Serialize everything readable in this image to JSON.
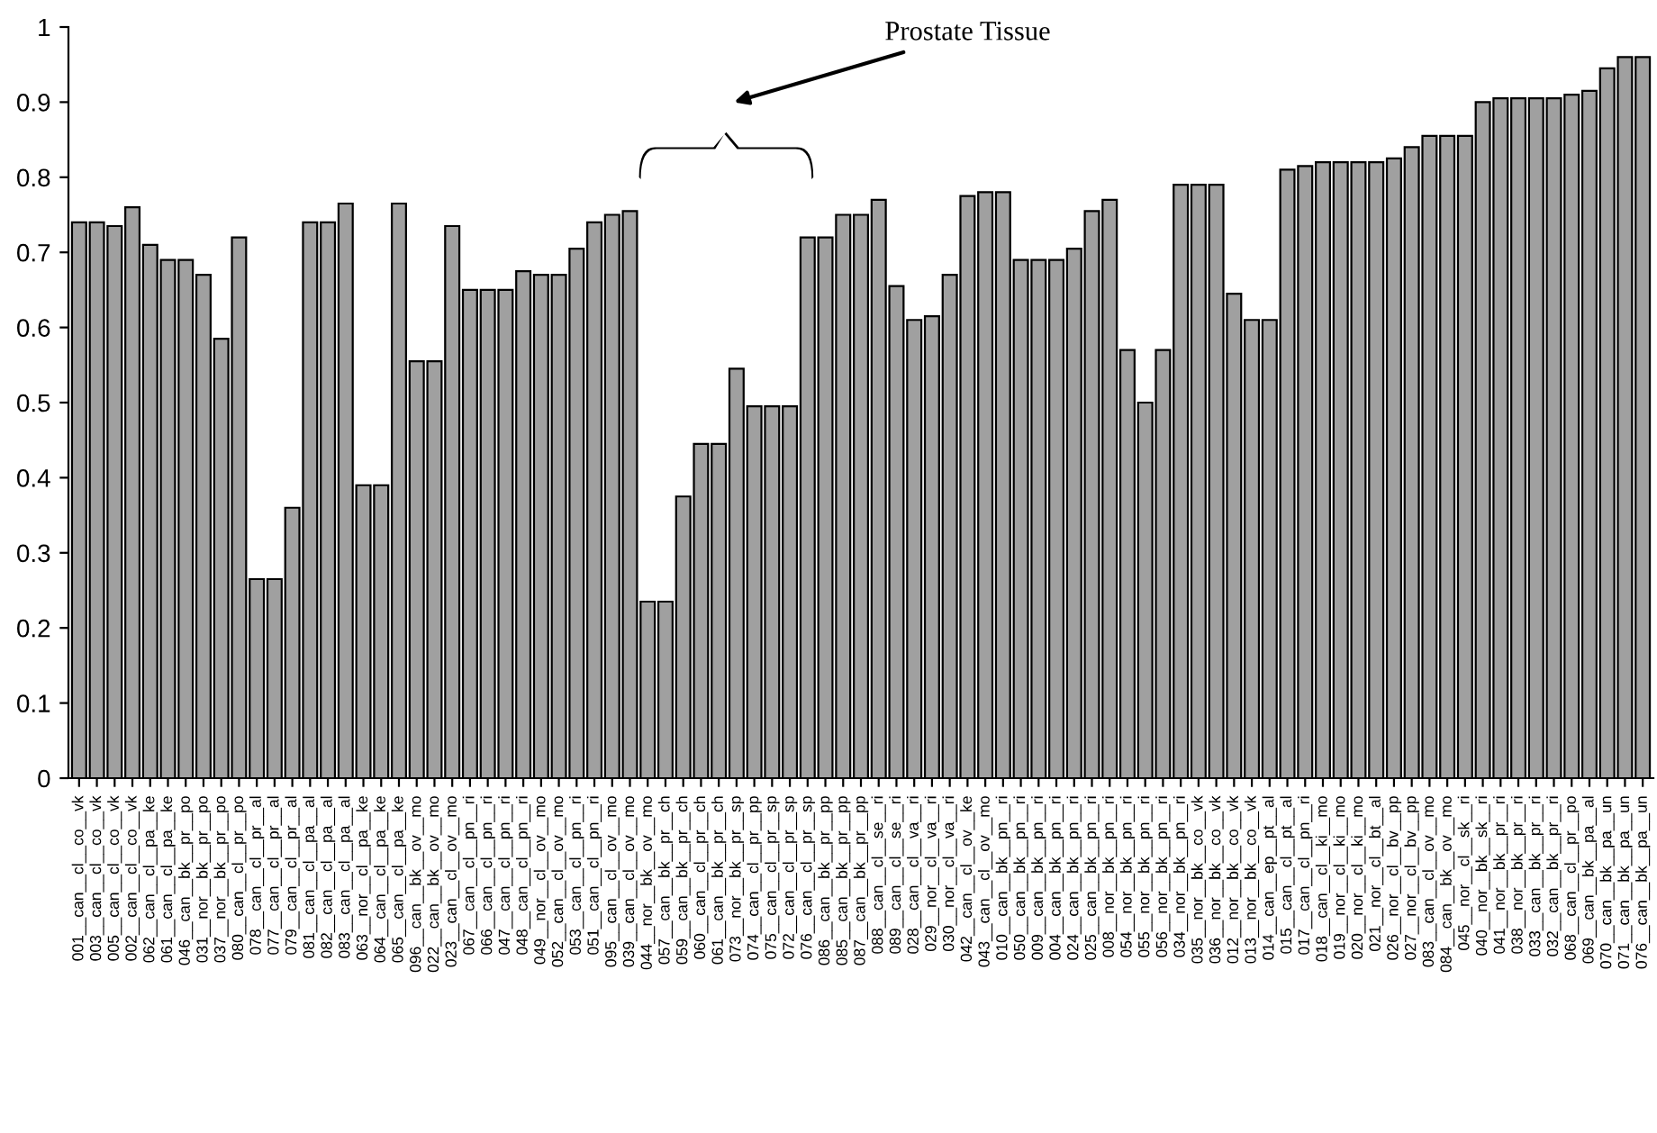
{
  "chart_data": {
    "type": "bar",
    "categories": [
      "001__can__cl__co__vk",
      "003__can__cl__co__vk",
      "005__can__cl__co__vk",
      "002__can__cl__co__vk",
      "062__can__cl__pa__ke",
      "061__can__cl__pa__ke",
      "046__can__bk__pr__po",
      "031__nor__bk__pr__po",
      "037__nor__bk__pr__po",
      "080__can__cl__pr__po",
      "078__can__cl__pr__al",
      "077__can__cl__pr__al",
      "079__can__cl__pr__al",
      "081__can__cl__pa__al",
      "082__can__cl__pa__al",
      "083__can__cl__pa__al",
      "063__nor__cl__pa__ke",
      "064__can__cl__pa__ke",
      "065__can__cl__pa__ke",
      "096__can__bk__ov__mo",
      "022__can__bk__ov__mo",
      "023__can__cl__ov__mo",
      "067__can__cl__pn__ri",
      "066__can__cl__pn__ri",
      "047__can__cl__pn__ri",
      "048__can__cl__pn__ri",
      "049__nor__cl__ov__mo",
      "052__can__cl__ov__mo",
      "053__can__cl__pn__ri",
      "051__can__cl__pn__ri",
      "095__can__cl__ov__mo",
      "039__can__cl__ov__mo",
      "044__nor__bk__ov__mo",
      "057__can__bk__pr__ch",
      "059__can__bk__pr__ch",
      "060__can__cl__pr__ch",
      "061__can__bk__pr__ch",
      "073__nor__bk__pr__sp",
      "074__can__cl__pr__pp",
      "075__can__cl__pr__sp",
      "072__can__cl__pr__sp",
      "076__can__cl__pr__sp",
      "086__can__bk__pr__pp",
      "085__can__bk__pr__pp",
      "087__can__bk__pr__pp",
      "088__can__cl__se__ri",
      "089__can__cl__se__ri",
      "028__can__cl__va__ri",
      "029__nor__cl__va__ri",
      "030__nor__cl__va__ri",
      "042__can__cl__ov__ke",
      "043__can__cl__ov__mo",
      "010__can__bk__pn__ri",
      "050__can__bk__pn__ri",
      "009__can__bk__pn__ri",
      "004__can__bk__pn__ri",
      "024__can__bk__pn__ri",
      "025__can__bk__pn__ri",
      "008__nor__bk__pn__ri",
      "054__nor__bk__pn__ri",
      "055__nor__bk__pn__ri",
      "056__nor__bk__pn__ri",
      "034__nor__bk__pn__ri",
      "035__nor__bk__co__vk",
      "036__nor__bk__co__vk",
      "012__nor__bk__co__vk",
      "013__nor__bk__co__vk",
      "014__can__ep__pt__al",
      "015__can__cl__pt__al",
      "017__can__cl__pn__ri",
      "018__can__cl__ki__mo",
      "019__nor__cl__ki__mo",
      "020__nor__cl__ki__mo",
      "021__nor__cl__bt__al",
      "026__nor__cl__bv__pp",
      "027__nor__cl__bv__pp",
      "083__can__cl__ov__mo",
      "084__can__bk__ov__mo",
      "045__nor__cl__sk__ri",
      "040__nor__bk__sk__ri",
      "041__nor__bk__pr__ri",
      "038__nor__bk__pr__ri",
      "033__can__bk__pr__ri",
      "032__can__bk__pr__ri",
      "068__can__cl__pr__po",
      "069__can__bk__pa__al",
      "070__can__bk__pa__un",
      "071__can__bk__pa__un",
      "076__can__bk__pa__un"
    ],
    "values": [
      0.74,
      0.74,
      0.735,
      0.76,
      0.71,
      0.69,
      0.69,
      0.67,
      0.585,
      0.72,
      0.265,
      0.265,
      0.36,
      0.74,
      0.74,
      0.765,
      0.39,
      0.39,
      0.765,
      0.555,
      0.555,
      0.735,
      0.65,
      0.65,
      0.65,
      0.675,
      0.67,
      0.67,
      0.705,
      0.74,
      0.75,
      0.755,
      0.235,
      0.235,
      0.375,
      0.445,
      0.445,
      0.545,
      0.495,
      0.495,
      0.495,
      0.72,
      0.72,
      0.75,
      0.75,
      0.77,
      0.655,
      0.61,
      0.615,
      0.67,
      0.775,
      0.78,
      0.78,
      0.69,
      0.69,
      0.69,
      0.705,
      0.755,
      0.77,
      0.57,
      0.5,
      0.57,
      0.79,
      0.79,
      0.79,
      0.645,
      0.61,
      0.61,
      0.81,
      0.815,
      0.82,
      0.82,
      0.82,
      0.82,
      0.825,
      0.84,
      0.855,
      0.855,
      0.855,
      0.9,
      0.905,
      0.905,
      0.905,
      0.905,
      0.91,
      0.915,
      0.945,
      0.96,
      0.96
    ],
    "color": "#a0a0a0",
    "ylim": [
      0,
      1
    ],
    "yticks": [
      0,
      0.1,
      0.2,
      0.3,
      0.4,
      0.5,
      0.6,
      0.7,
      0.8,
      0.9,
      1
    ],
    "grid": false,
    "annotations": [
      "Prostate Tissue"
    ]
  }
}
